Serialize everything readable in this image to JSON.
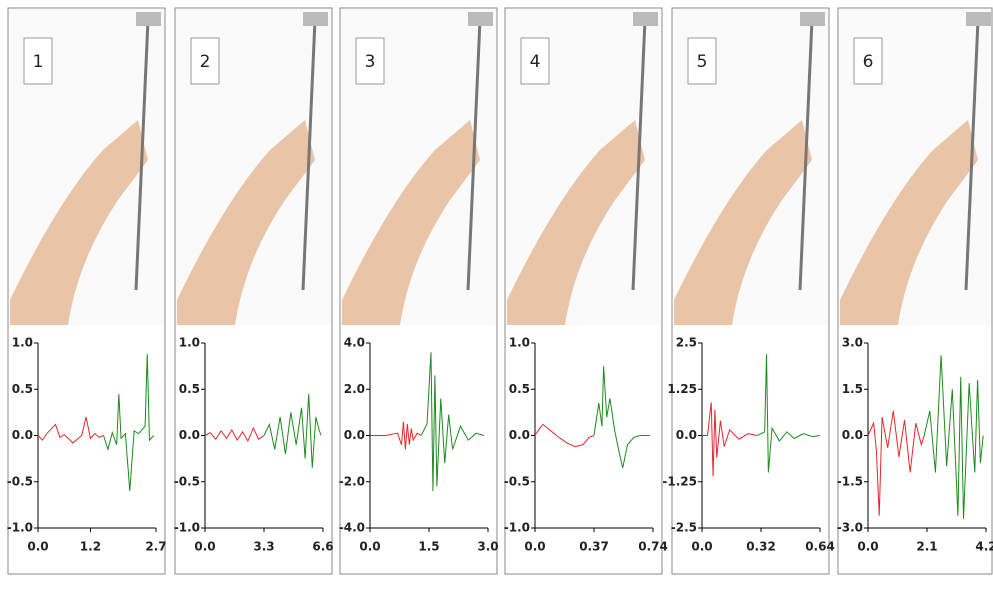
{
  "chart_data": [
    {
      "type": "line",
      "label": "1",
      "xlim": [
        0,
        2.7
      ],
      "xticks": [
        {
          "value": 0,
          "label": "0.0"
        },
        1.2,
        2.7
      ],
      "ylim": [
        -1,
        1
      ],
      "yticks": [
        {
          "value": 1,
          "label": "1.0"
        },
        0.5,
        {
          "value": 0,
          "label": "0.0"
        },
        -0.5,
        {
          "value": -1,
          "label": "-1.0"
        }
      ],
      "series": [
        {
          "color": "#e8262b",
          "x": [
            0,
            0.1,
            0.2,
            0.4,
            0.5,
            0.6,
            0.8,
            1.0,
            1.1,
            1.2,
            1.3,
            1.4,
            1.5
          ],
          "values": [
            0,
            -0.05,
            0.02,
            0.12,
            -0.02,
            0.01,
            -0.08,
            0,
            0.2,
            -0.03,
            0.02,
            -0.02,
            0
          ]
        },
        {
          "color": "#1f8a1f",
          "x": [
            1.5,
            1.6,
            1.7,
            1.8,
            1.85,
            1.9,
            2.0,
            2.1,
            2.2,
            2.3,
            2.45,
            2.5,
            2.55,
            2.65
          ],
          "values": [
            0,
            -0.15,
            0.03,
            -0.1,
            0.45,
            -0.03,
            0.02,
            -0.6,
            0.05,
            0.02,
            0.1,
            0.88,
            -0.05,
            0
          ]
        }
      ]
    },
    {
      "type": "line",
      "label": "2",
      "xlim": [
        0,
        6.6
      ],
      "xticks": [
        {
          "value": 0,
          "label": "0.0"
        },
        3.3,
        6.6
      ],
      "ylim": [
        -1,
        1
      ],
      "yticks": [
        {
          "value": 1,
          "label": "1.0"
        },
        0.5,
        {
          "value": 0,
          "label": "0.0"
        },
        -0.5,
        {
          "value": -1,
          "label": "-1.0"
        }
      ],
      "series": [
        {
          "color": "#e8262b",
          "x": [
            0,
            0.3,
            0.6,
            0.9,
            1.2,
            1.5,
            1.8,
            2.1,
            2.4,
            2.7,
            3.0,
            3.3
          ],
          "values": [
            0,
            0.03,
            -0.04,
            0.05,
            -0.03,
            0.06,
            -0.05,
            0.04,
            -0.06,
            0.08,
            -0.04,
            0
          ]
        },
        {
          "color": "#1f8a1f",
          "x": [
            3.3,
            3.6,
            3.9,
            4.2,
            4.5,
            4.8,
            5.1,
            5.4,
            5.6,
            5.8,
            6.0,
            6.2,
            6.4,
            6.5
          ],
          "values": [
            0,
            0.12,
            -0.15,
            0.2,
            -0.2,
            0.25,
            -0.1,
            0.3,
            -0.25,
            0.45,
            -0.35,
            0.2,
            0.05,
            0
          ]
        }
      ]
    },
    {
      "type": "line",
      "label": "3",
      "xlim": [
        0,
        3.0
      ],
      "xticks": [
        {
          "value": 0,
          "label": "0.0"
        },
        1.5,
        {
          "value": 3,
          "label": "3.0"
        }
      ],
      "ylim": [
        -4,
        4
      ],
      "yticks": [
        {
          "value": 4,
          "label": "4.0"
        },
        {
          "value": 2,
          "label": "2.0"
        },
        {
          "value": 0,
          "label": "0.0"
        },
        {
          "value": -2,
          "label": "-2.0"
        },
        {
          "value": -4,
          "label": "-4.0"
        }
      ],
      "series": [
        {
          "color": "#e8262b",
          "x": [
            0,
            0.4,
            0.7,
            0.8,
            0.85,
            0.9,
            0.95,
            1.0,
            1.05,
            1.1,
            1.2,
            1.3
          ],
          "values": [
            0,
            0,
            0.1,
            -0.4,
            0.6,
            -0.6,
            0.5,
            -0.4,
            0.3,
            -0.2,
            0.1,
            0
          ]
        },
        {
          "color": "#1f8a1f",
          "x": [
            1.3,
            1.45,
            1.55,
            1.6,
            1.65,
            1.7,
            1.8,
            1.9,
            2.0,
            2.1,
            2.3,
            2.5,
            2.7,
            2.9
          ],
          "values": [
            0,
            0.5,
            3.6,
            -2.4,
            2.6,
            -2.2,
            1.6,
            -1.2,
            0.9,
            -0.6,
            0.4,
            -0.2,
            0.1,
            0
          ]
        }
      ]
    },
    {
      "type": "line",
      "label": "4",
      "xlim": [
        0,
        0.74
      ],
      "xticks": [
        {
          "value": 0,
          "label": "0.0"
        },
        0.37,
        0.74
      ],
      "ylim": [
        -1,
        1
      ],
      "yticks": [
        {
          "value": 1,
          "label": "1.0"
        },
        0.5,
        {
          "value": 0,
          "label": "0.0"
        },
        -0.5,
        {
          "value": -1,
          "label": "-1.0"
        }
      ],
      "series": [
        {
          "color": "#e8262b",
          "x": [
            0,
            0.03,
            0.05,
            0.1,
            0.15,
            0.2,
            0.25,
            0.3,
            0.34,
            0.37
          ],
          "values": [
            0,
            0.08,
            0.12,
            0.05,
            -0.02,
            -0.08,
            -0.12,
            -0.1,
            -0.02,
            0
          ]
        },
        {
          "color": "#1f8a1f",
          "x": [
            0.37,
            0.4,
            0.42,
            0.43,
            0.45,
            0.47,
            0.5,
            0.53,
            0.55,
            0.58,
            0.62,
            0.66,
            0.72
          ],
          "values": [
            0,
            0.35,
            0.1,
            0.75,
            0.2,
            0.4,
            0.05,
            -0.2,
            -0.35,
            -0.1,
            -0.02,
            0,
            0
          ]
        }
      ]
    },
    {
      "type": "line",
      "label": "5",
      "xlim": [
        0,
        0.64
      ],
      "xticks": [
        {
          "value": 0,
          "label": "0.0"
        },
        0.32,
        0.64
      ],
      "ylim": [
        -2.5,
        2.5
      ],
      "yticks": [
        2.5,
        1.25,
        {
          "value": 0,
          "label": "0.0"
        },
        -1.25,
        -2.5
      ],
      "series": [
        {
          "color": "#e8262b",
          "x": [
            0,
            0.03,
            0.05,
            0.06,
            0.07,
            0.08,
            0.1,
            0.12,
            0.15,
            0.2,
            0.25,
            0.3
          ],
          "values": [
            0,
            0,
            0.9,
            -1.1,
            0.7,
            -0.6,
            0.4,
            -0.3,
            0.15,
            -0.1,
            0.05,
            0
          ]
        },
        {
          "color": "#1f8a1f",
          "x": [
            0.3,
            0.34,
            0.35,
            0.36,
            0.38,
            0.42,
            0.46,
            0.5,
            0.55,
            0.6,
            0.64
          ],
          "values": [
            0,
            0.1,
            2.2,
            -1.0,
            0.2,
            -0.15,
            0.1,
            -0.08,
            0.05,
            -0.03,
            0
          ]
        }
      ]
    },
    {
      "type": "line",
      "label": "6",
      "xlim": [
        0,
        4.2
      ],
      "xticks": [
        {
          "value": 0,
          "label": "0.0"
        },
        2.1,
        4.2
      ],
      "ylim": [
        -3,
        3
      ],
      "yticks": [
        {
          "value": 3,
          "label": "3.0"
        },
        1.5,
        {
          "value": 0,
          "label": "0.0"
        },
        -1.5,
        {
          "value": -3,
          "label": "-3.0"
        }
      ],
      "series": [
        {
          "color": "#e8262b",
          "x": [
            0,
            0.2,
            0.3,
            0.4,
            0.5,
            0.7,
            0.9,
            1.1,
            1.3,
            1.5,
            1.7,
            1.9,
            2.0
          ],
          "values": [
            0,
            0.4,
            -0.5,
            -2.6,
            0.6,
            -0.4,
            0.8,
            -0.7,
            0.5,
            -1.2,
            0.4,
            -0.3,
            0
          ]
        },
        {
          "color": "#1f8a1f",
          "x": [
            2.0,
            2.2,
            2.4,
            2.6,
            2.8,
            3.0,
            3.2,
            3.3,
            3.4,
            3.6,
            3.8,
            3.9,
            4.0,
            4.1
          ],
          "values": [
            0,
            0.8,
            -1.2,
            2.6,
            -1.0,
            1.5,
            -2.6,
            1.9,
            -2.7,
            1.7,
            -1.2,
            1.8,
            -0.9,
            0
          ]
        }
      ]
    }
  ]
}
